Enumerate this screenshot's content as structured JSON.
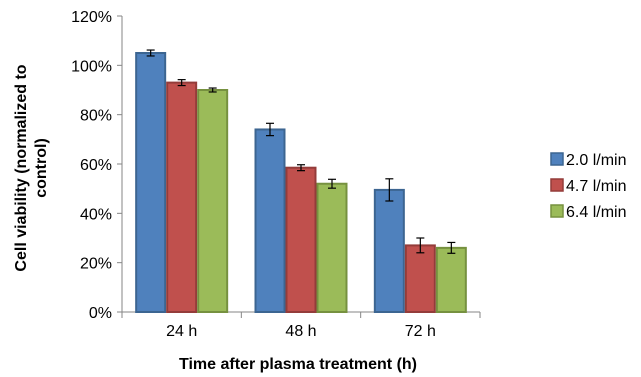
{
  "chart_data": {
    "type": "bar",
    "categories": [
      "24 h",
      "48 h",
      "72 h"
    ],
    "series": [
      {
        "name": "2.0 l/min",
        "values": [
          105,
          74,
          49.5
        ],
        "errors": [
          1.2,
          2.5,
          4.5
        ],
        "color": "#4f81bd",
        "edge": "#3c6591"
      },
      {
        "name": "4.7 l/min",
        "values": [
          93,
          58.5,
          27
        ],
        "errors": [
          1.2,
          1.2,
          3.0
        ],
        "color": "#c0504d",
        "edge": "#943c3a"
      },
      {
        "name": "6.4 l/min",
        "values": [
          90,
          52,
          26
        ],
        "errors": [
          0.8,
          1.8,
          2.2
        ],
        "color": "#9bbb59",
        "edge": "#76913f"
      }
    ],
    "xlabel": "Time after plasma treatment (h)",
    "ylabel_lines": [
      "Cell viability (normalized to",
      "control)"
    ],
    "ylim": [
      0,
      120
    ],
    "yticks": [
      0,
      20,
      40,
      60,
      80,
      100,
      120
    ],
    "ytick_labels": [
      "0%",
      "20%",
      "40%",
      "60%",
      "80%",
      "100%",
      "120%"
    ],
    "grid": false,
    "legend_position": "right"
  }
}
